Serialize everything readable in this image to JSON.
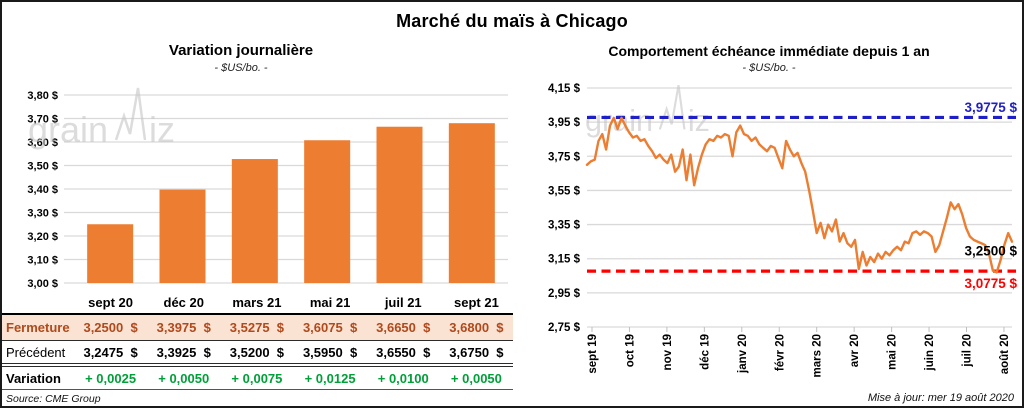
{
  "page": {
    "title": "Marché du maïs à Chicago",
    "source_note": "Source: CME Group",
    "update_note": "Mise à jour: mer 19 août 2020",
    "watermark": {
      "part1": "grain",
      "part2": "iz"
    }
  },
  "colors": {
    "orange": "#ED7D31",
    "blue": "#1F1FC8",
    "red": "#FF0000",
    "green": "#00A038",
    "grid": "#D9D9D9",
    "tick": "#BFBFBF",
    "fermeture_bg": "#FBE3D4",
    "fermeture_text": "#B0491B",
    "watermark": "#C6C6C6"
  },
  "chart_data": [
    {
      "type": "bar",
      "title": "Variation journalière",
      "subtitle": "- $US/bo. -",
      "categories": [
        "sept 20",
        "déc 20",
        "mars 21",
        "mai 21",
        "juil 21",
        "sept 21"
      ],
      "values": [
        3.25,
        3.3975,
        3.5275,
        3.6075,
        3.665,
        3.68
      ],
      "ylim": [
        3.0,
        3.8
      ],
      "ytick_step": 0.1,
      "ytick_labels": [
        "3,80 $",
        "3,70 $",
        "3,60 $",
        "3,50 $",
        "3,40 $",
        "3,30 $",
        "3,20 $",
        "3,10 $",
        "3,00 $"
      ],
      "grid": true,
      "bar_color": "#ED7D31"
    },
    {
      "type": "line",
      "title": "Comportement échéance immédiate depuis 1 an",
      "subtitle": "- $US/bo. -",
      "x_tick_labels": [
        "sept 19",
        "oct 19",
        "nov 19",
        "déc 19",
        "janv 20",
        "févr 20",
        "mars 20",
        "avr 20",
        "mai 20",
        "juin 20",
        "juil 20",
        "août 20"
      ],
      "ylim": [
        2.75,
        4.15
      ],
      "ytick_step": 0.2,
      "ytick_labels": [
        "4,15 $",
        "3,95 $",
        "3,75 $",
        "3,55 $",
        "3,35 $",
        "3,15 $",
        "2,95 $",
        "2,75 $"
      ],
      "grid": true,
      "legend": false,
      "series": [
        {
          "name": "échéance immédiate",
          "color": "#ED7D31",
          "values": [
            3.7,
            3.72,
            3.73,
            3.84,
            3.88,
            3.79,
            3.93,
            3.975,
            3.91,
            3.975,
            3.93,
            3.89,
            3.86,
            3.87,
            3.84,
            3.85,
            3.81,
            3.78,
            3.74,
            3.76,
            3.73,
            3.71,
            3.76,
            3.66,
            3.69,
            3.79,
            3.61,
            3.76,
            3.58,
            3.68,
            3.76,
            3.82,
            3.85,
            3.84,
            3.87,
            3.86,
            3.88,
            3.87,
            3.75,
            3.89,
            3.93,
            3.88,
            3.87,
            3.84,
            3.86,
            3.82,
            3.8,
            3.78,
            3.81,
            3.8,
            3.74,
            3.68,
            3.84,
            3.79,
            3.75,
            3.77,
            3.71,
            3.66,
            3.55,
            3.43,
            3.3,
            3.36,
            3.27,
            3.35,
            3.31,
            3.38,
            3.25,
            3.3,
            3.24,
            3.22,
            3.26,
            3.09,
            3.19,
            3.11,
            3.16,
            3.13,
            3.18,
            3.15,
            3.19,
            3.17,
            3.2,
            3.22,
            3.2,
            3.25,
            3.24,
            3.3,
            3.31,
            3.29,
            3.31,
            3.3,
            3.28,
            3.19,
            3.23,
            3.31,
            3.39,
            3.48,
            3.44,
            3.47,
            3.41,
            3.33,
            3.28,
            3.26,
            3.25,
            3.24,
            3.23,
            3.18,
            3.08,
            3.07,
            3.14,
            3.23,
            3.3,
            3.25
          ]
        }
      ],
      "reference_lines": [
        {
          "value": 3.9775,
          "label": "3,9775 $",
          "color": "#1F1FC8",
          "style": "dashed",
          "label_position": "above-right"
        },
        {
          "value": 3.0775,
          "label": "3,0775 $",
          "color": "#FF0000",
          "style": "dashed",
          "label_position": "below-right"
        }
      ],
      "last_point_label": {
        "value": 3.25,
        "label": "3,2500 $",
        "color": "#000000"
      }
    }
  ],
  "table": {
    "headers": [
      "",
      "sept 20",
      "déc 20",
      "mars 21",
      "mai 21",
      "juil 21",
      "sept 21"
    ],
    "rows": [
      {
        "id": "fermeture",
        "label": "Fermeture",
        "values": [
          "3,2500  $",
          "3,3975  $",
          "3,5275  $",
          "3,6075  $",
          "3,6650  $",
          "3,6800  $"
        ]
      },
      {
        "id": "precedent",
        "label": "Précédent",
        "values": [
          "3,2475  $",
          "3,3925  $",
          "3,5200  $",
          "3,5950  $",
          "3,6550  $",
          "3,6750  $"
        ]
      },
      {
        "id": "variation",
        "label": "Variation",
        "values": [
          "+ 0,0025",
          "+ 0,0050",
          "+ 0,0075",
          "+ 0,0125",
          "+ 0,0100",
          "+ 0,0050"
        ]
      }
    ]
  }
}
